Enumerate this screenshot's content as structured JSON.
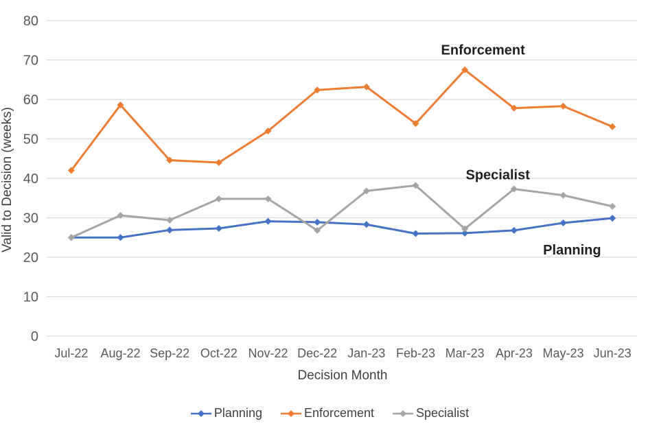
{
  "chart_data": {
    "type": "line",
    "title": "",
    "xlabel": "Decision Month",
    "ylabel": "Valid to Decision (weeks)",
    "ylim": [
      0,
      80
    ],
    "ytick_step": 10,
    "grid": true,
    "legend_position": "bottom",
    "categories": [
      "Jul-22",
      "Aug-22",
      "Sep-22",
      "Oct-22",
      "Nov-22",
      "Dec-22",
      "Jan-23",
      "Feb-23",
      "Mar-23",
      "Apr-23",
      "May-23",
      "Jun-23"
    ],
    "series": [
      {
        "name": "Planning",
        "color": "#4472C4",
        "values": [
          25,
          25,
          26.9,
          27.3,
          29.1,
          28.9,
          28.3,
          26,
          26.1,
          26.8,
          28.7,
          29.9
        ]
      },
      {
        "name": "Enforcement",
        "color": "#ED7D31",
        "values": [
          42,
          58.6,
          44.6,
          44,
          52,
          62.4,
          63.2,
          53.9,
          67.5,
          57.8,
          58.3,
          53.1
        ]
      },
      {
        "name": "Specialist",
        "color": "#A5A5A5",
        "values": [
          25,
          30.6,
          29.4,
          34.8,
          34.8,
          26.8,
          36.8,
          38.2,
          27.2,
          37.3,
          35.7,
          32.9
        ]
      }
    ],
    "annotations": [
      {
        "text": "Enforcement",
        "x_index": 8.37,
        "y_value": 72.6
      },
      {
        "text": "Specialist",
        "x_index": 8.67,
        "y_value": 41.0
      },
      {
        "text": "Planning",
        "x_index": 10.18,
        "y_value": 21.9
      }
    ],
    "colors": {
      "gridline": "#D9D9D9",
      "tick_label": "#595959",
      "axis_title": "#404040",
      "annotation": "#1f1f1f"
    }
  }
}
